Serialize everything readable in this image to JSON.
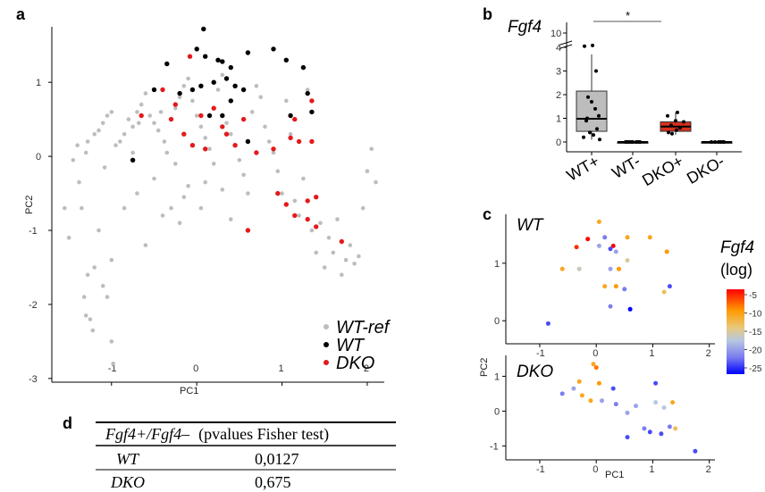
{
  "panels": {
    "a": "a",
    "b": "b",
    "c": "c",
    "d": "d"
  },
  "colors": {
    "wtref": "#bdbdbd",
    "wt": "#000000",
    "dko": "#e31a1c",
    "box_wt": "#bdbdbd",
    "box_dko": "#d7301f"
  },
  "chart_data": [
    {
      "type": "scatter",
      "panel": "a",
      "xlabel": "PC1",
      "ylabel": "PC2",
      "xticks": [
        "-1",
        "0",
        "1",
        "2"
      ],
      "yticks": [
        "-3",
        "-2",
        "-1",
        "0",
        "1"
      ],
      "xlim": [
        -1.7,
        2.2
      ],
      "ylim": [
        -3.05,
        1.75
      ],
      "legend": [
        "WT-ref",
        "WT",
        "DKO"
      ],
      "series": [
        {
          "name": "WT-ref",
          "color": "#bdbdbd",
          "points": [
            [
              -1.55,
              -0.7
            ],
            [
              -1.5,
              -1.1
            ],
            [
              -1.45,
              -0.05
            ],
            [
              -1.38,
              -0.35
            ],
            [
              -1.35,
              -0.7
            ],
            [
              -1.32,
              -1.9
            ],
            [
              -1.3,
              -2.15
            ],
            [
              -1.28,
              -1.6
            ],
            [
              -1.25,
              -2.2
            ],
            [
              -1.22,
              -2.35
            ],
            [
              -1.2,
              -1.5
            ],
            [
              -1.15,
              -1.0
            ],
            [
              -1.1,
              -1.75
            ],
            [
              -1.05,
              -1.9
            ],
            [
              -1.0,
              -2.5
            ],
            [
              -0.98,
              -2.8
            ],
            [
              -1.0,
              -1.4
            ],
            [
              -1.3,
              0.05
            ],
            [
              -1.28,
              0.2
            ],
            [
              -1.2,
              0.3
            ],
            [
              -1.15,
              0.35
            ],
            [
              -1.1,
              0.45
            ],
            [
              -1.05,
              0.55
            ],
            [
              -1.0,
              0.6
            ],
            [
              -0.95,
              0.15
            ],
            [
              -0.9,
              0.2
            ],
            [
              -0.85,
              0.3
            ],
            [
              -0.8,
              0.5
            ],
            [
              -0.75,
              0.4
            ],
            [
              -0.7,
              0.6
            ],
            [
              -0.68,
              0.45
            ],
            [
              -0.65,
              0.7
            ],
            [
              -0.6,
              0.85
            ],
            [
              -0.55,
              0.55
            ],
            [
              -0.5,
              0.45
            ],
            [
              -0.45,
              0.35
            ],
            [
              -0.42,
              0.6
            ],
            [
              -0.38,
              0.2
            ],
            [
              -0.35,
              0.05
            ],
            [
              -0.3,
              0.5
            ],
            [
              -0.25,
              0.65
            ],
            [
              -0.2,
              0.8
            ],
            [
              -0.15,
              0.95
            ],
            [
              -0.1,
              1.05
            ],
            [
              -0.05,
              0.75
            ],
            [
              0.0,
              0.55
            ],
            [
              0.05,
              0.4
            ],
            [
              0.1,
              0.25
            ],
            [
              0.15,
              0.1
            ],
            [
              0.2,
              -0.1
            ],
            [
              0.25,
              0.9
            ],
            [
              0.3,
              1.1
            ],
            [
              0.35,
              0.45
            ],
            [
              0.4,
              0.3
            ],
            [
              0.45,
              0.15
            ],
            [
              0.5,
              -0.05
            ],
            [
              0.55,
              -0.25
            ],
            [
              0.6,
              -0.5
            ],
            [
              0.65,
              0.6
            ],
            [
              0.7,
              0.95
            ],
            [
              0.75,
              0.8
            ],
            [
              0.8,
              0.4
            ],
            [
              0.85,
              0.2
            ],
            [
              0.9,
              0.05
            ],
            [
              0.95,
              -0.2
            ],
            [
              1.0,
              -0.5
            ],
            [
              1.05,
              0.75
            ],
            [
              1.1,
              0.3
            ],
            [
              1.15,
              -0.6
            ],
            [
              1.2,
              -0.8
            ],
            [
              1.25,
              -0.3
            ],
            [
              1.3,
              0.9
            ],
            [
              1.35,
              -1.0
            ],
            [
              1.4,
              -1.3
            ],
            [
              1.45,
              -0.9
            ],
            [
              1.5,
              -1.5
            ],
            [
              1.55,
              -1.1
            ],
            [
              1.6,
              -1.3
            ],
            [
              1.65,
              -0.85
            ],
            [
              1.7,
              -1.6
            ],
            [
              1.75,
              -1.4
            ],
            [
              1.8,
              -1.2
            ],
            [
              1.85,
              -1.45
            ],
            [
              1.9,
              -1.35
            ],
            [
              1.95,
              -0.7
            ],
            [
              2.0,
              -0.2
            ],
            [
              2.05,
              0.1
            ],
            [
              2.1,
              -0.35
            ],
            [
              -0.5,
              -0.3
            ],
            [
              -0.4,
              -0.8
            ],
            [
              -0.3,
              -0.7
            ],
            [
              -0.2,
              -0.9
            ],
            [
              -0.1,
              -0.4
            ],
            [
              -0.25,
              -0.1
            ],
            [
              -0.15,
              -0.55
            ],
            [
              0.05,
              -0.7
            ],
            [
              0.1,
              -0.35
            ],
            [
              0.3,
              -0.45
            ],
            [
              0.4,
              -0.85
            ],
            [
              -0.7,
              -0.5
            ],
            [
              -0.85,
              -0.7
            ],
            [
              -0.6,
              -1.2
            ],
            [
              -0.75,
              0.05
            ],
            [
              -1.4,
              0.15
            ],
            [
              -1.08,
              -0.15
            ]
          ]
        },
        {
          "name": "WT",
          "color": "#000000",
          "points": [
            [
              0.08,
              1.72
            ],
            [
              -0.35,
              1.25
            ],
            [
              -0.2,
              0.85
            ],
            [
              -0.05,
              0.9
            ],
            [
              0.0,
              1.45
            ],
            [
              0.1,
              1.35
            ],
            [
              0.2,
              1.0
            ],
            [
              0.25,
              1.3
            ],
            [
              0.3,
              1.28
            ],
            [
              0.35,
              1.05
            ],
            [
              0.4,
              1.2
            ],
            [
              0.45,
              0.95
            ],
            [
              0.55,
              0.9
            ],
            [
              0.6,
              1.4
            ],
            [
              0.9,
              1.45
            ],
            [
              1.05,
              1.3
            ],
            [
              1.25,
              1.2
            ],
            [
              1.3,
              0.85
            ],
            [
              1.35,
              0.6
            ],
            [
              1.1,
              0.55
            ],
            [
              0.15,
              0.55
            ],
            [
              0.3,
              0.55
            ],
            [
              0.6,
              0.2
            ],
            [
              -0.75,
              -0.05
            ],
            [
              -0.5,
              0.9
            ],
            [
              0.05,
              0.95
            ],
            [
              0.4,
              0.75
            ]
          ]
        },
        {
          "name": "DKO",
          "color": "#e31a1c",
          "points": [
            [
              -0.08,
              1.35
            ],
            [
              -0.4,
              0.9
            ],
            [
              -0.65,
              0.55
            ],
            [
              -0.3,
              0.5
            ],
            [
              -0.15,
              0.3
            ],
            [
              -0.05,
              0.15
            ],
            [
              0.1,
              0.1
            ],
            [
              0.2,
              0.65
            ],
            [
              0.3,
              0.4
            ],
            [
              0.35,
              0.3
            ],
            [
              0.45,
              0.15
            ],
            [
              0.7,
              0.05
            ],
            [
              0.9,
              0.1
            ],
            [
              1.1,
              0.25
            ],
            [
              1.2,
              0.2
            ],
            [
              1.35,
              0.75
            ],
            [
              1.15,
              0.5
            ],
            [
              0.95,
              -0.5
            ],
            [
              1.05,
              -0.65
            ],
            [
              1.15,
              -0.8
            ],
            [
              1.3,
              -0.6
            ],
            [
              1.4,
              -0.55
            ],
            [
              1.3,
              -0.85
            ],
            [
              1.4,
              -0.95
            ],
            [
              0.6,
              -1.0
            ],
            [
              1.7,
              -1.15
            ],
            [
              0.05,
              0.55
            ],
            [
              -0.25,
              0.7
            ],
            [
              0.55,
              0.5
            ],
            [
              1.35,
              0.2
            ]
          ]
        }
      ]
    },
    {
      "type": "box",
      "panel": "b",
      "title": "Fgf4",
      "categories": [
        "WT+",
        "WT-",
        "DKO+",
        "DKO-"
      ],
      "yticks_lower": [
        "0",
        "1",
        "2",
        "3",
        "4"
      ],
      "ytick_upper": "10",
      "significance": "*",
      "boxes": [
        {
          "name": "WT+",
          "q1": 0.45,
          "median": 0.98,
          "q3": 2.15,
          "min": 0.1,
          "max": 3.7,
          "fill": "#bdbdbd"
        },
        {
          "name": "WT-",
          "q1": 0.0,
          "median": 0.0,
          "q3": 0.0,
          "min": 0.0,
          "max": 0.0,
          "fill": "#bdbdbd"
        },
        {
          "name": "DKO+",
          "q1": 0.45,
          "median": 0.65,
          "q3": 0.85,
          "min": 0.3,
          "max": 1.25,
          "fill": "#d7301f"
        },
        {
          "name": "DKO-",
          "q1": 0.0,
          "median": 0.0,
          "q3": 0.0,
          "min": 0.0,
          "max": 0.0,
          "fill": "#d7301f"
        }
      ],
      "points": [
        [
          0,
          4.5
        ],
        [
          0,
          1.9
        ],
        [
          0,
          1.7
        ],
        [
          0,
          1.4
        ],
        [
          0,
          1.1
        ],
        [
          0,
          0.9
        ],
        [
          0,
          0.55
        ],
        [
          0,
          0.4
        ],
        [
          0,
          0.3
        ],
        [
          0,
          0.2
        ],
        [
          0,
          0.1
        ],
        [
          0,
          1.0
        ],
        [
          0,
          3.0
        ],
        [
          0,
          4.8
        ],
        [
          1,
          0
        ],
        [
          1,
          0
        ],
        [
          1,
          0
        ],
        [
          1,
          0
        ],
        [
          1,
          0
        ],
        [
          1,
          0
        ],
        [
          1,
          0
        ],
        [
          1,
          0
        ],
        [
          2,
          1.25
        ],
        [
          2,
          1.1
        ],
        [
          2,
          0.85
        ],
        [
          2,
          0.7
        ],
        [
          2,
          0.6
        ],
        [
          2,
          0.5
        ],
        [
          2,
          0.4
        ],
        [
          2,
          0.35
        ],
        [
          2,
          0.9
        ],
        [
          3,
          0
        ],
        [
          3,
          0
        ],
        [
          3,
          0
        ],
        [
          3,
          0
        ],
        [
          3,
          0
        ],
        [
          3,
          0
        ]
      ]
    },
    {
      "type": "scatter",
      "panel": "c-top",
      "title": "WT",
      "xticks": [
        "-1",
        "0",
        "1",
        "2"
      ],
      "yticks": [
        "0",
        "1"
      ],
      "xlim": [
        -1.6,
        2.1
      ],
      "ylim": [
        -0.4,
        1.85
      ],
      "points": [
        [
          0.05,
          1.72,
          -10
        ],
        [
          -0.35,
          1.28,
          -6
        ],
        [
          -0.15,
          1.42,
          -5
        ],
        [
          0.3,
          1.3,
          -5
        ],
        [
          0.15,
          1.45,
          -20
        ],
        [
          0.35,
          1.2,
          -18
        ],
        [
          0.55,
          1.45,
          -10
        ],
        [
          0.95,
          1.45,
          -10
        ],
        [
          1.25,
          1.2,
          -9
        ],
        [
          -0.6,
          0.9,
          -10
        ],
        [
          -0.3,
          0.9,
          -15
        ],
        [
          0.25,
          0.9,
          -18
        ],
        [
          0.4,
          0.9,
          -9
        ],
        [
          0.15,
          0.6,
          -10
        ],
        [
          0.35,
          0.6,
          -9
        ],
        [
          0.5,
          0.55,
          -20
        ],
        [
          0.25,
          0.25,
          -20
        ],
        [
          0.6,
          0.2,
          -25
        ],
        [
          1.3,
          0.6,
          -22
        ],
        [
          1.2,
          0.5,
          -12
        ],
        [
          -0.85,
          -0.05,
          -22
        ],
        [
          0.05,
          1.3,
          -18
        ],
        [
          0.25,
          1.25,
          -22
        ],
        [
          0.55,
          1.05,
          -14
        ]
      ]
    },
    {
      "type": "scatter",
      "panel": "c-bottom",
      "title": "DKO",
      "xlabel": "PC1",
      "ylabel": "PC2",
      "xticks": [
        "-1",
        "0",
        "1",
        "2"
      ],
      "yticks": [
        "-1",
        "0",
        "1"
      ],
      "xlim": [
        -1.6,
        2.1
      ],
      "ylim": [
        -1.4,
        1.6
      ],
      "points": [
        [
          -0.05,
          1.35,
          -10
        ],
        [
          0.0,
          1.25,
          -8
        ],
        [
          -0.3,
          0.85,
          -10
        ],
        [
          0.05,
          0.8,
          -9
        ],
        [
          -0.4,
          0.65,
          -18
        ],
        [
          -0.6,
          0.5,
          -20
        ],
        [
          -0.25,
          0.45,
          -10
        ],
        [
          -0.1,
          0.3,
          -10
        ],
        [
          0.1,
          0.3,
          -18
        ],
        [
          0.35,
          0.2,
          -20
        ],
        [
          0.7,
          0.15,
          -18
        ],
        [
          1.05,
          0.25,
          -16
        ],
        [
          1.2,
          0.1,
          -16
        ],
        [
          1.35,
          0.25,
          -10
        ],
        [
          0.3,
          0.65,
          -22
        ],
        [
          0.55,
          -0.05,
          -18
        ],
        [
          1.05,
          0.8,
          -22
        ],
        [
          0.85,
          -0.5,
          -20
        ],
        [
          0.95,
          -0.6,
          -22
        ],
        [
          1.15,
          -0.65,
          -22
        ],
        [
          1.3,
          -0.45,
          -20
        ],
        [
          1.4,
          -0.5,
          -12
        ],
        [
          0.55,
          -0.75,
          -22
        ],
        [
          1.75,
          -1.15,
          -22
        ]
      ]
    },
    {
      "type": "table",
      "panel": "d",
      "header": [
        "Fgf4+/Fgf4–",
        "(pvalues Fisher test)"
      ],
      "rows": [
        [
          "WT",
          "0,0127"
        ],
        [
          "DKO",
          "0,675"
        ]
      ]
    }
  ],
  "colorbar": {
    "title": "Fgf4",
    "subtitle": "(log)",
    "ticks": [
      "-5",
      "-10",
      "-15",
      "-20",
      "-25"
    ]
  }
}
